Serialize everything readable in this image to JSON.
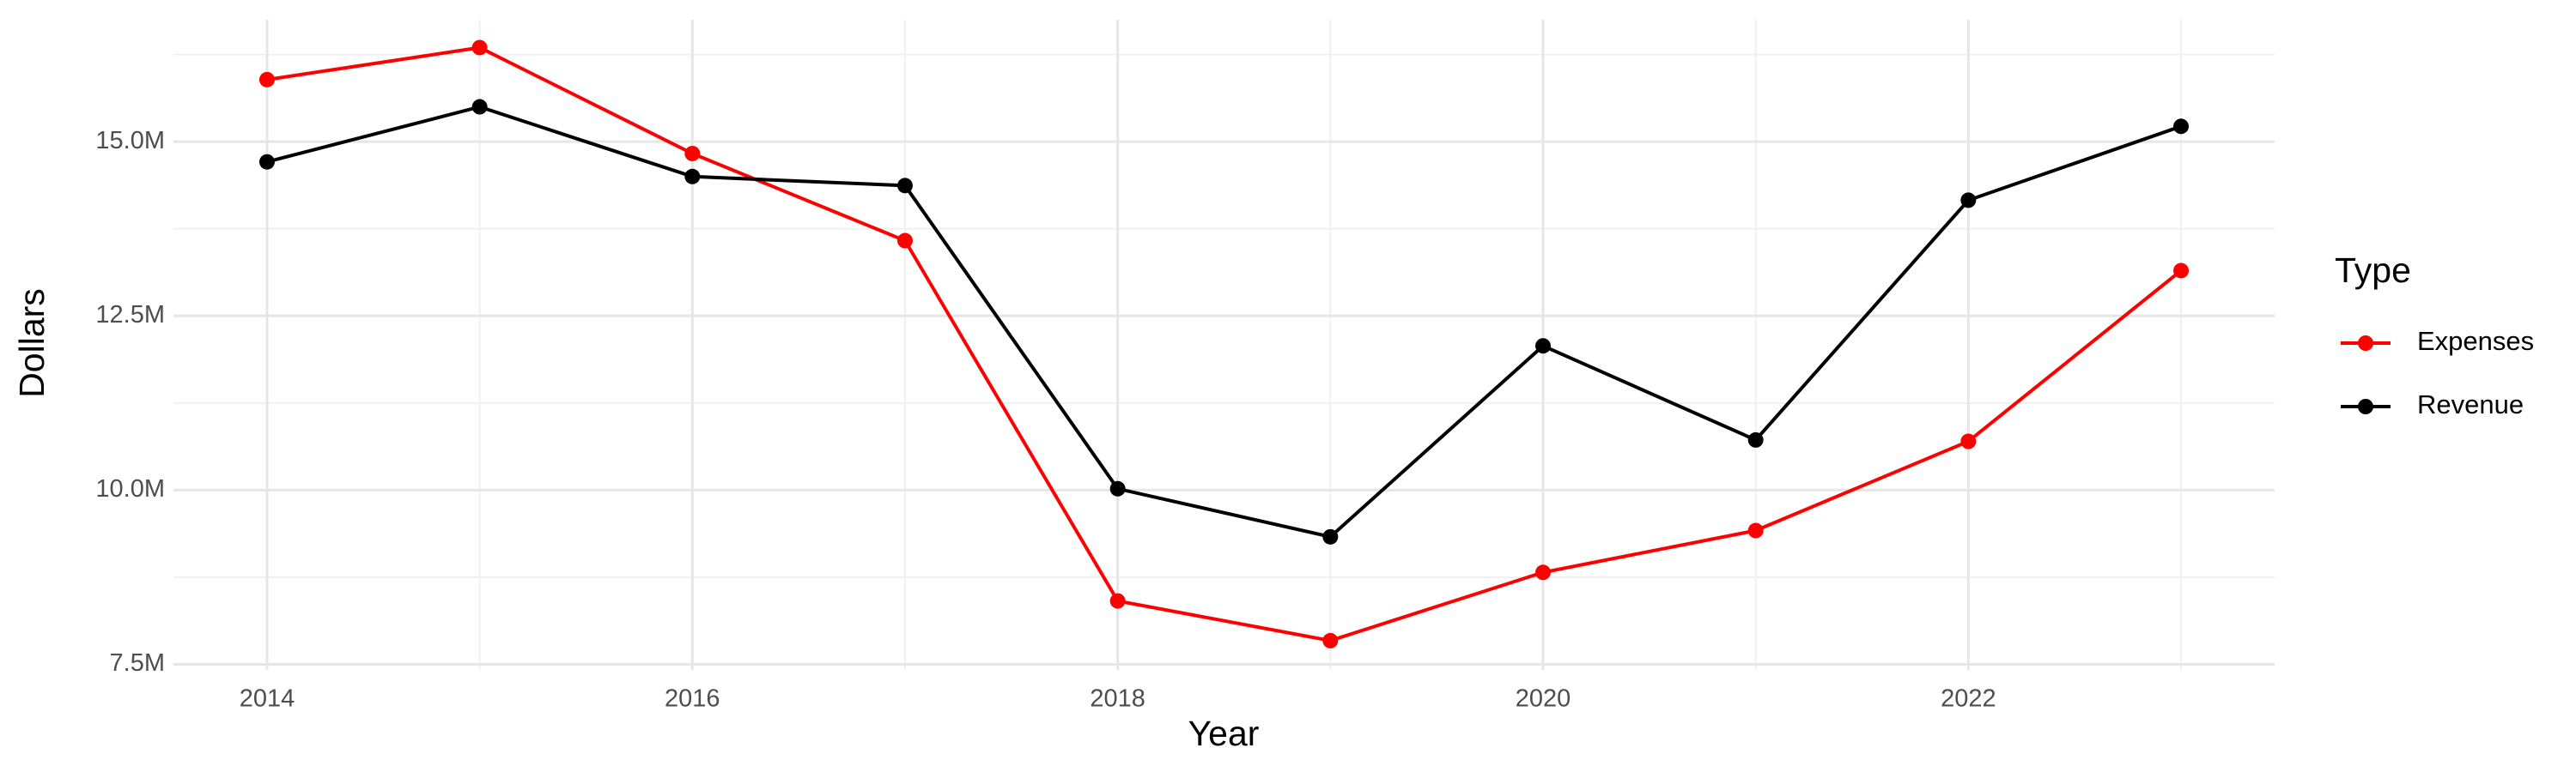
{
  "chart_data": {
    "type": "line",
    "x_label": "Year",
    "y_label": "Dollars",
    "x": [
      2014,
      2015,
      2016,
      2017,
      2018,
      2019,
      2020,
      2021,
      2022,
      2023
    ],
    "series": [
      {
        "name": "Expenses",
        "color": "#ff0000",
        "values": [
          15.89,
          16.35,
          14.83,
          13.58,
          8.41,
          7.84,
          8.82,
          9.42,
          10.7,
          13.15
        ]
      },
      {
        "name": "Revenue",
        "color": "#000000",
        "values": [
          14.71,
          15.5,
          14.5,
          14.37,
          10.02,
          9.33,
          12.07,
          10.72,
          14.16,
          15.22
        ]
      }
    ],
    "xlim": [
      2013.56,
      2023.44
    ],
    "xticks": [
      2014,
      2016,
      2018,
      2020,
      2022
    ],
    "x_minor_gridlines": [
      2015,
      2017,
      2019,
      2021,
      2023
    ],
    "ylim": [
      7.42,
      16.75
    ],
    "yticks": [
      {
        "value": 7.5,
        "label": "7.5M"
      },
      {
        "value": 10,
        "label": "10.0M"
      },
      {
        "value": 12.5,
        "label": "12.5M"
      },
      {
        "value": 15,
        "label": "15.0M"
      }
    ],
    "y_minor_gridlines": [
      8.75,
      11.25,
      13.75,
      16.25
    ],
    "grid": true,
    "legend_title": "Type",
    "legend": "right"
  }
}
